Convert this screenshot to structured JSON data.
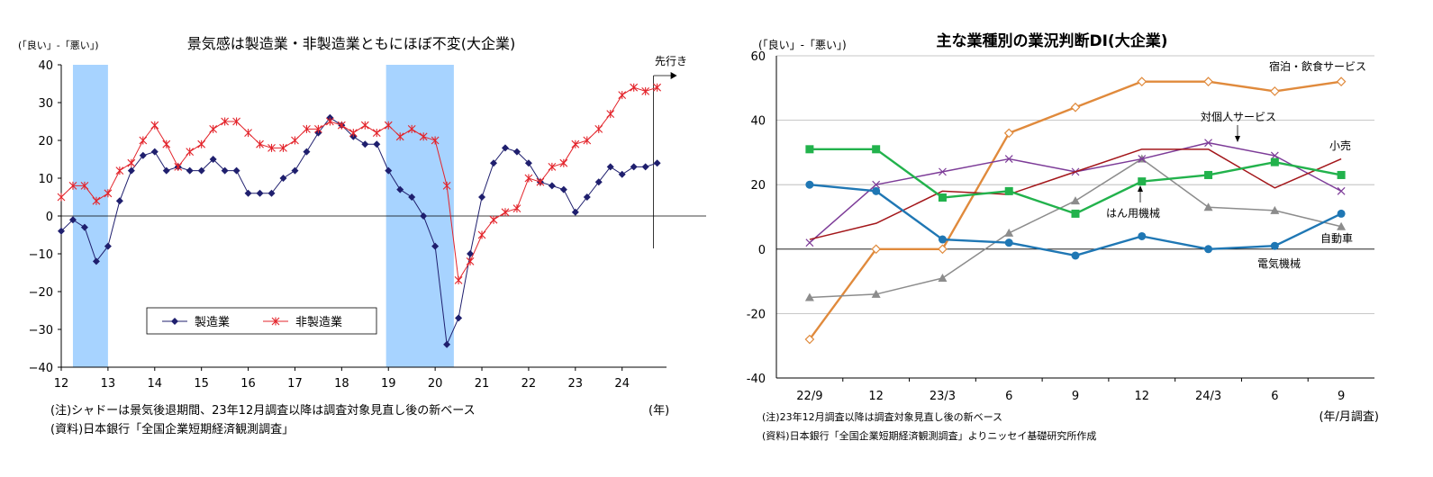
{
  "chart_data": [
    {
      "type": "line",
      "title": "景気感は製造業・非製造業ともにほぼ不変(大企業)",
      "ylabel": "(「良い」-「悪い」)",
      "xunit": "(年)",
      "ylim": [
        -40,
        40
      ],
      "yticks": [
        "40",
        "30",
        "20",
        "10",
        "0",
        "−10",
        "−20",
        "−30",
        "−40"
      ],
      "xlim": [
        12,
        24.95
      ],
      "xticks": [
        "12",
        "13",
        "14",
        "15",
        "16",
        "17",
        "18",
        "19",
        "20",
        "21",
        "22",
        "23",
        "24"
      ],
      "grid": false,
      "legend_position": "bottom-center",
      "forecast_label": "先行き",
      "recessions": [
        [
          12.25,
          13.0
        ],
        [
          18.95,
          20.4
        ]
      ],
      "series": [
        {
          "name": "製造業",
          "color": "#1f1f6e",
          "marker": "diamond",
          "x": [
            12.0,
            12.25,
            12.5,
            12.75,
            13.0,
            13.25,
            13.5,
            13.75,
            14.0,
            14.25,
            14.5,
            14.75,
            15.0,
            15.25,
            15.5,
            15.75,
            16.0,
            16.25,
            16.5,
            16.75,
            17.0,
            17.25,
            17.5,
            17.75,
            18.0,
            18.25,
            18.5,
            18.75,
            19.0,
            19.25,
            19.5,
            19.75,
            20.0,
            20.25,
            20.5,
            20.75,
            21.0,
            21.25,
            21.5,
            21.75,
            22.0,
            22.25,
            22.5,
            22.75,
            23.0,
            23.25,
            23.5,
            23.75,
            24.0,
            24.25,
            24.5,
            24.75
          ],
          "values": [
            -4,
            -1,
            -3,
            -12,
            -8,
            4,
            12,
            16,
            17,
            12,
            13,
            12,
            12,
            15,
            12,
            12,
            6,
            6,
            6,
            10,
            12,
            17,
            22,
            26,
            24,
            21,
            19,
            19,
            12,
            7,
            5,
            0,
            -8,
            -34,
            -27,
            -10,
            5,
            14,
            18,
            17,
            14,
            9,
            8,
            7,
            1,
            5,
            9,
            13,
            11,
            13,
            13,
            14
          ]
        },
        {
          "name": "非製造業",
          "color": "#e3242b",
          "marker": "asterisk",
          "x": [
            12.0,
            12.25,
            12.5,
            12.75,
            13.0,
            13.25,
            13.5,
            13.75,
            14.0,
            14.25,
            14.5,
            14.75,
            15.0,
            15.25,
            15.5,
            15.75,
            16.0,
            16.25,
            16.5,
            16.75,
            17.0,
            17.25,
            17.5,
            17.75,
            18.0,
            18.25,
            18.5,
            18.75,
            19.0,
            19.25,
            19.5,
            19.75,
            20.0,
            20.25,
            20.5,
            20.75,
            21.0,
            21.25,
            21.5,
            21.75,
            22.0,
            22.25,
            22.5,
            22.75,
            23.0,
            23.25,
            23.5,
            23.75,
            24.0,
            24.25,
            24.5,
            24.75
          ],
          "values": [
            5,
            8,
            8,
            4,
            6,
            12,
            14,
            20,
            24,
            19,
            13,
            17,
            19,
            23,
            25,
            25,
            22,
            19,
            18,
            18,
            20,
            23,
            23,
            25,
            24,
            22,
            24,
            22,
            24,
            21,
            23,
            21,
            20,
            8,
            -17,
            -12,
            -5,
            -1,
            1,
            2,
            10,
            9,
            13,
            14,
            19,
            20,
            23,
            27,
            32,
            34,
            33,
            34
          ]
        }
      ],
      "notes": [
        "(注)シャドーは景気後退期間、23年12月調査以降は調査対象見直し後の新ベース",
        "(資料)日本銀行「全国企業短期経済観測調査」"
      ]
    },
    {
      "type": "line",
      "title": "主な業種別の業況判断DI(大企業)",
      "ylabel": "(「良い」-「悪い」)",
      "xunit": "(年/月調査)",
      "ylim": [
        -40,
        60
      ],
      "yticks": [
        "60",
        "40",
        "20",
        "0",
        "-20",
        "-40"
      ],
      "categories": [
        "22/9",
        "12",
        "23/3",
        "6",
        "9",
        "12",
        "24/3",
        "6",
        "9"
      ],
      "grid": true,
      "series": [
        {
          "name": "宿泊・飲食サービス",
          "color": "#e08a3c",
          "marker": "diamond-open",
          "values": [
            -28,
            0,
            0,
            36,
            44,
            52,
            52,
            49,
            52
          ]
        },
        {
          "name": "対個人サービス",
          "color": "#7d3c98",
          "marker": "x",
          "values": [
            2,
            20,
            24,
            28,
            24,
            28,
            33,
            29,
            18
          ]
        },
        {
          "name": "小売",
          "color": "#a3161a",
          "marker": "none",
          "values": [
            3,
            8,
            18,
            17,
            24,
            31,
            31,
            19,
            28
          ]
        },
        {
          "name": "はん用機械",
          "color": "#22b24c",
          "marker": "square",
          "values": [
            31,
            31,
            16,
            18,
            11,
            21,
            23,
            27,
            23
          ]
        },
        {
          "name": "自動車",
          "color": "#8c8c8c",
          "marker": "triangle",
          "values": [
            -15,
            -14,
            -9,
            5,
            15,
            28,
            13,
            12,
            7
          ]
        },
        {
          "name": "電気機械",
          "color": "#1f77b4",
          "marker": "circle",
          "values": [
            20,
            18,
            3,
            2,
            -2,
            4,
            0,
            1,
            11
          ]
        }
      ],
      "notes": [
        "(注)23年12月調査以降は調査対象見直し後の新ベース",
        "(資料)日本銀行「全国企業短期経済観測調査」よりニッセイ基礎研究所作成"
      ]
    }
  ]
}
